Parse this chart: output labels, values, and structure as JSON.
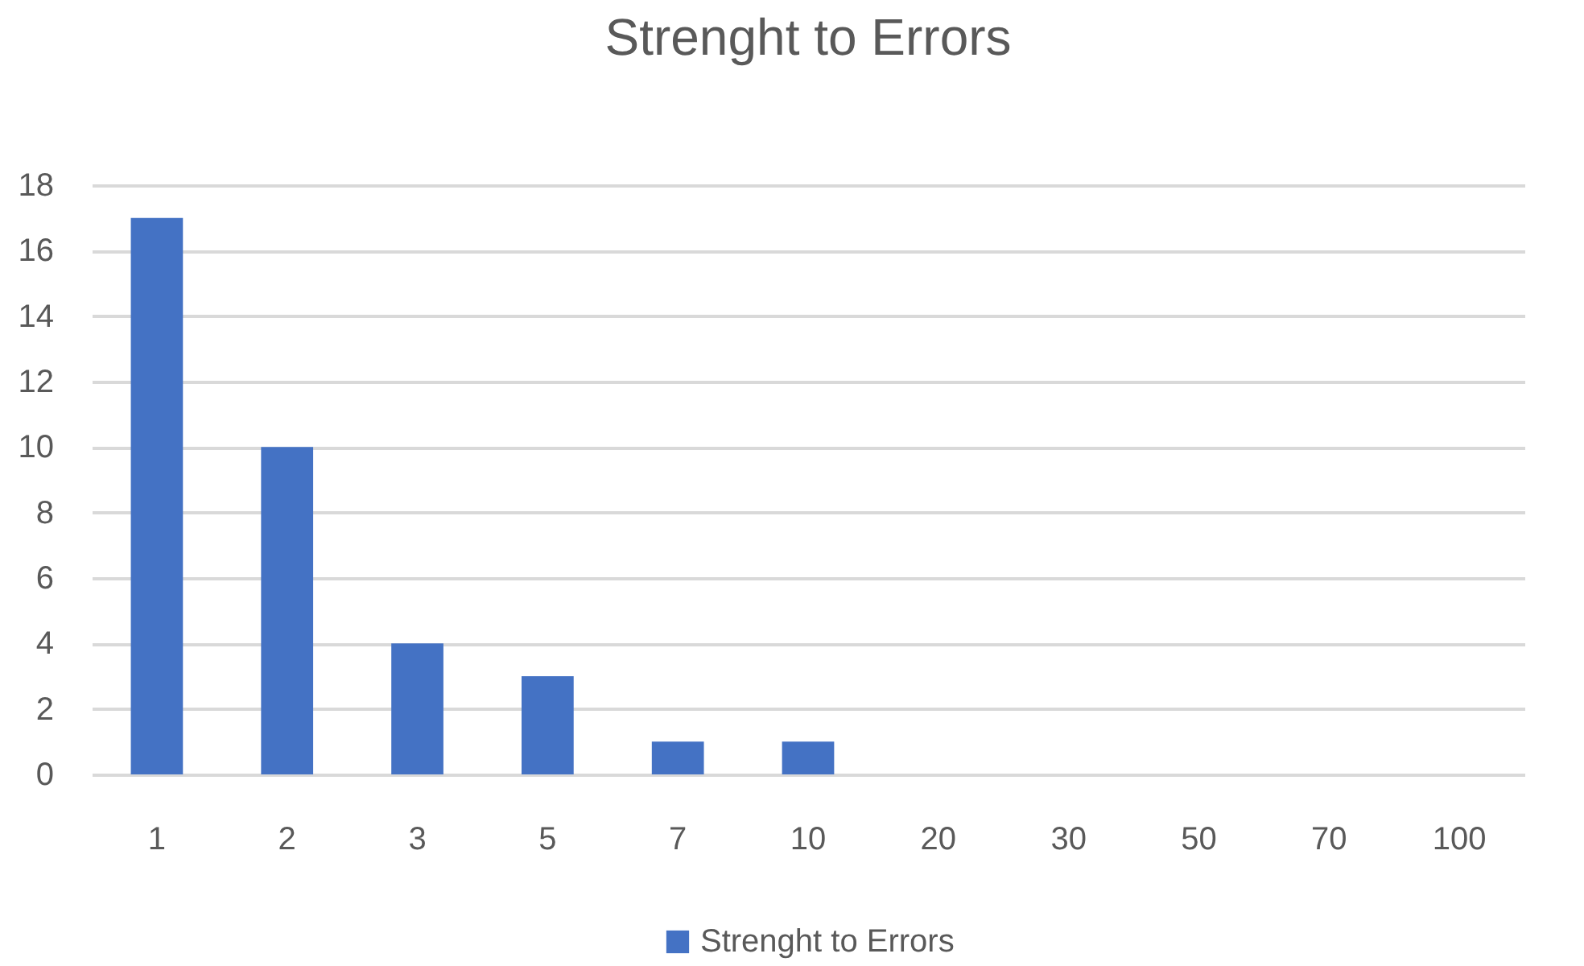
{
  "chart_data": {
    "type": "bar",
    "title": "Strenght to Errors",
    "categories": [
      "1",
      "2",
      "3",
      "5",
      "7",
      "10",
      "20",
      "30",
      "50",
      "70",
      "100"
    ],
    "series": [
      {
        "name": "Strenght to Errors",
        "color": "#4472c4",
        "values": [
          17,
          10,
          4,
          3,
          1,
          1,
          0,
          0,
          0,
          0,
          0
        ]
      }
    ],
    "ylim": [
      0,
      18
    ],
    "yticks": [
      0,
      2,
      4,
      6,
      8,
      10,
      12,
      14,
      16,
      18
    ],
    "grid": "y",
    "legend": "bottom"
  }
}
